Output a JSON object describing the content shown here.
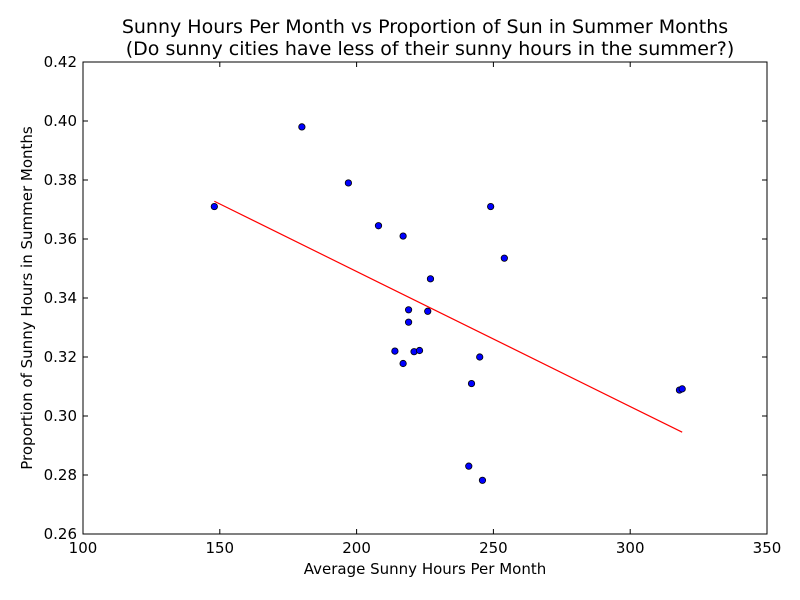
{
  "chart_data": {
    "type": "scatter",
    "title": "Sunny Hours Per Month vs Proportion of Sun in Summer Months",
    "subtitle": "(Do sunny cities have less of their sunny hours in the summer?)",
    "xlabel": "Average Sunny Hours Per Month",
    "ylabel": "Proportion of Sunny Hours in Summer Months",
    "xlim": [
      100,
      350
    ],
    "ylim": [
      0.26,
      0.42
    ],
    "xticks": [
      "100",
      "150",
      "200",
      "250",
      "300",
      "350"
    ],
    "yticks": [
      "0.26",
      "0.28",
      "0.30",
      "0.32",
      "0.34",
      "0.36",
      "0.38",
      "0.40",
      "0.42"
    ],
    "grid": false,
    "colors": {
      "points": "#0000ff",
      "point_edge": "#000000",
      "trendline": "#ff0000"
    },
    "series": [
      {
        "points": [
          {
            "x": 148,
            "y": 0.371
          },
          {
            "x": 180,
            "y": 0.398
          },
          {
            "x": 197,
            "y": 0.379
          },
          {
            "x": 208,
            "y": 0.3645
          },
          {
            "x": 214,
            "y": 0.322
          },
          {
            "x": 217,
            "y": 0.361
          },
          {
            "x": 217,
            "y": 0.3178
          },
          {
            "x": 219,
            "y": 0.336
          },
          {
            "x": 219,
            "y": 0.3318
          },
          {
            "x": 221,
            "y": 0.3218
          },
          {
            "x": 223,
            "y": 0.3222
          },
          {
            "x": 226,
            "y": 0.3355
          },
          {
            "x": 227,
            "y": 0.3465
          },
          {
            "x": 241,
            "y": 0.283
          },
          {
            "x": 242,
            "y": 0.311
          },
          {
            "x": 245,
            "y": 0.32
          },
          {
            "x": 246,
            "y": 0.2782
          },
          {
            "x": 249,
            "y": 0.371
          },
          {
            "x": 254,
            "y": 0.3535
          },
          {
            "x": 318,
            "y": 0.3088
          },
          {
            "x": 319,
            "y": 0.3092
          }
        ]
      }
    ],
    "trendline": {
      "x": [
        148,
        319
      ],
      "y": [
        0.3728,
        0.2945
      ]
    }
  }
}
